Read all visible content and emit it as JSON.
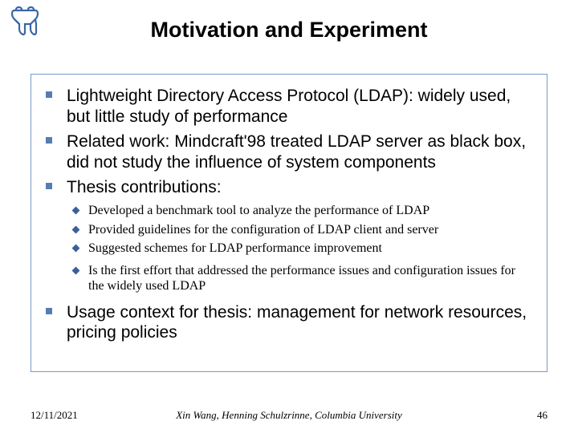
{
  "colors": {
    "background": "#ffffff",
    "text": "#000000",
    "box_border": "#7a99c9",
    "square_bullet": "#547db4",
    "diamond_bullet": "#3b5f9b",
    "logo_stroke": "#3b66a6"
  },
  "typography": {
    "title_fontsize": 27,
    "main_fontsize": 21,
    "sub_fontsize": 16,
    "footer_fontsize": 13
  },
  "title": "Motivation and Experiment",
  "bullets": [
    {
      "text": "Lightweight Directory Access Protocol (LDAP): widely used, but little study of performance"
    },
    {
      "text": "Related work: Mindcraft'98 treated LDAP server as black box, did not study the influence of system components"
    },
    {
      "text": "Thesis contributions:",
      "sub": [
        "Developed a benchmark tool to analyze the performance of LDAP",
        "Provided guidelines for the configuration of LDAP client and server",
        "Suggested schemes for LDAP performance improvement",
        "Is the first effort that addressed the performance issues and configuration issues for the widely used LDAP"
      ]
    },
    {
      "text": "Usage context for thesis: management for network resources, pricing policies"
    }
  ],
  "footer": {
    "date": "12/11/2021",
    "center": "Xin Wang, Henning Schulzrinne, Columbia University",
    "page": "46"
  }
}
